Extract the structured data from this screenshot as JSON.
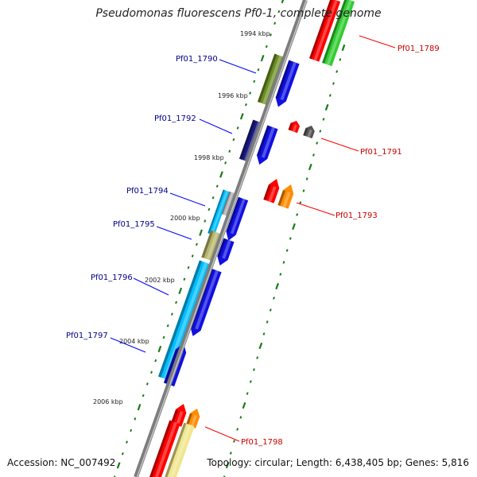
{
  "title": "Pseudomonas fluorescens Pf0-1, complete genome",
  "footer": {
    "accession": "Accession: NC_007492",
    "topology": "Topology: circular; Length: 6,438,405 bp; Genes: 5,816"
  },
  "colors": {
    "backbone": "#808080",
    "tick": "#1a7a1a",
    "label_forward": "#00008b",
    "label_reverse": "#cc0000",
    "leader_forward": "#0000ff",
    "leader_reverse": "#ff0000"
  },
  "kbp_labels": [
    "1994 kbp",
    "1996 kbp",
    "1998 kbp",
    "2000 kbp",
    "2002 kbp",
    "2004 kbp",
    "2006 kbp"
  ],
  "genes_forward": [
    {
      "name": "Pf01_1790"
    },
    {
      "name": "Pf01_1792"
    },
    {
      "name": "Pf01_1794"
    },
    {
      "name": "Pf01_1795"
    },
    {
      "name": "Pf01_1796"
    },
    {
      "name": "Pf01_1797"
    }
  ],
  "genes_reverse": [
    {
      "name": "Pf01_1789"
    },
    {
      "name": "Pf01_1791"
    },
    {
      "name": "Pf01_1793"
    },
    {
      "name": "Pf01_1798"
    }
  ]
}
